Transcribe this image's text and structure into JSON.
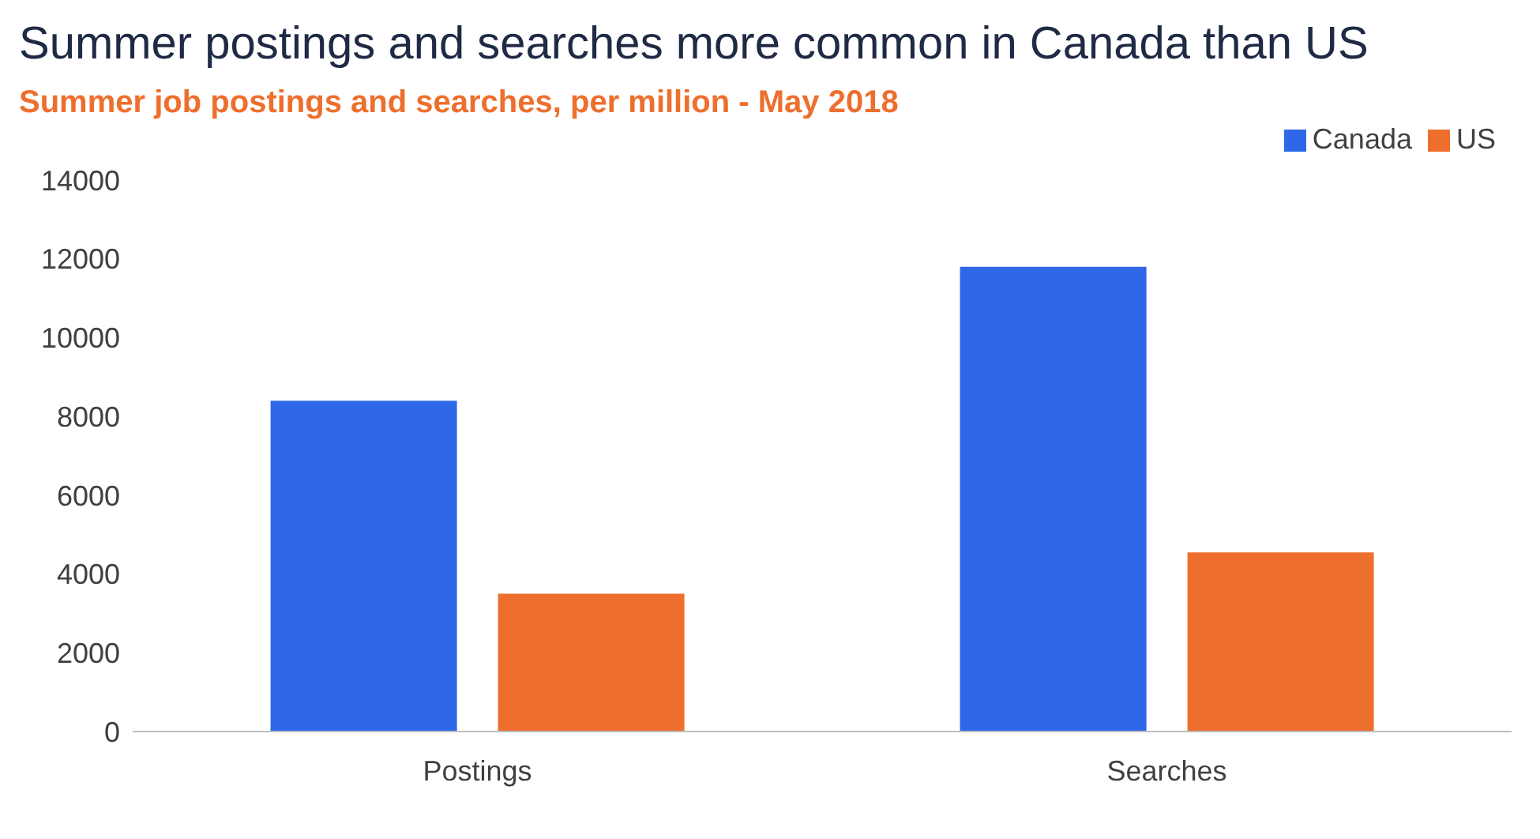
{
  "chart_data": {
    "type": "bar",
    "title": "Summer postings and searches more common in Canada than US",
    "subtitle": "Summer job postings and searches, per million - May 2018",
    "categories": [
      "Postings",
      "Searches"
    ],
    "series": [
      {
        "name": "Canada",
        "color": "#2e67e8",
        "values": [
          8400,
          11800
        ]
      },
      {
        "name": "US",
        "color": "#ee6f2d",
        "values": [
          3500,
          4550
        ]
      }
    ],
    "ylim": [
      0,
      14000
    ],
    "yticks": [
      0,
      2000,
      4000,
      6000,
      8000,
      10000,
      12000,
      14000
    ],
    "grid": false,
    "legend": "top right"
  }
}
